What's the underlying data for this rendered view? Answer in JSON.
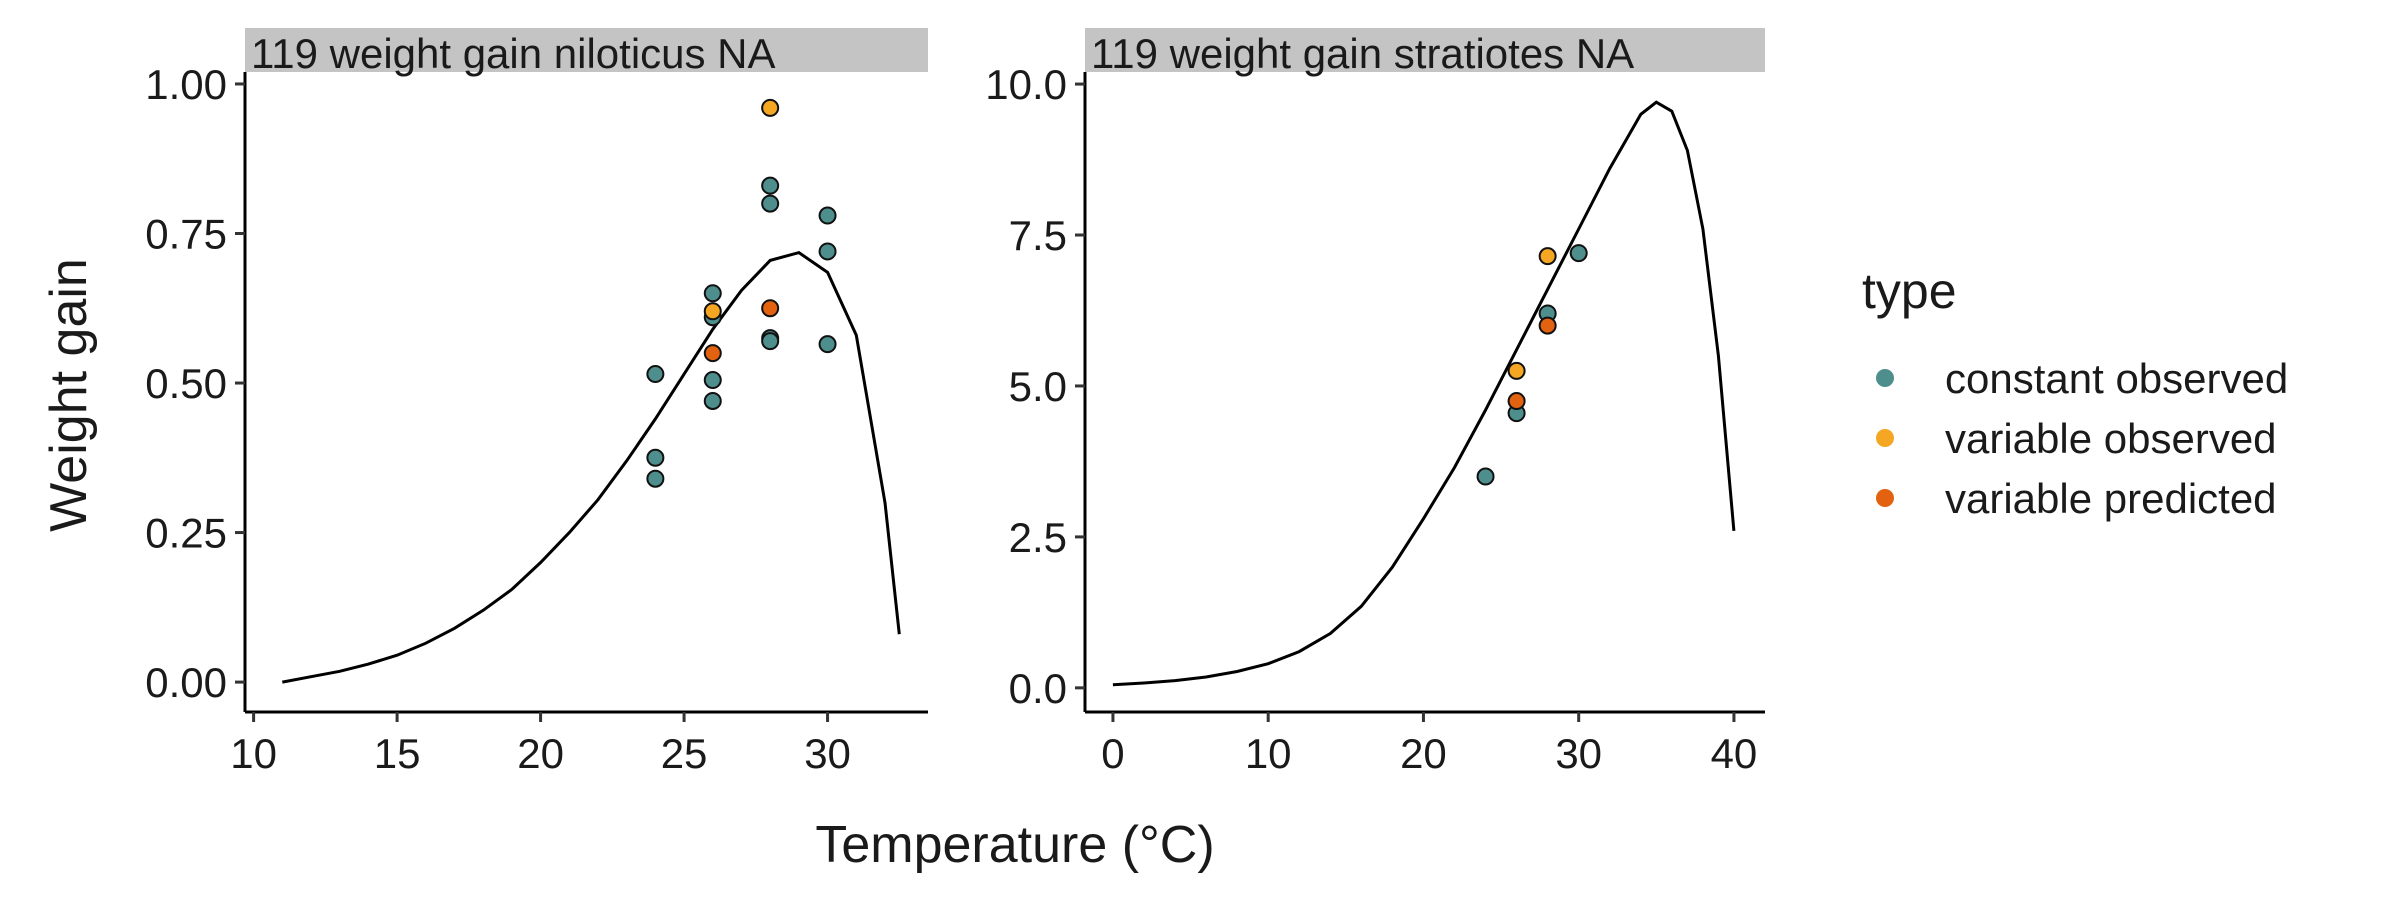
{
  "chart_data": {
    "type": "scatter",
    "xlabel": "Temperature (°C)",
    "ylabel": "Weight gain",
    "legend": {
      "title": "type",
      "position": "right",
      "entries": [
        {
          "label": "constant observed",
          "color": "#4E8F8E"
        },
        {
          "label": "variable observed",
          "color": "#F5A623"
        },
        {
          "label": "variable predicted",
          "color": "#E2620F"
        }
      ]
    },
    "panels": [
      {
        "strip": "119  weight gain  niloticus  NA",
        "xlim": [
          9.7,
          33.5
        ],
        "ylim": [
          -0.05,
          1.02
        ],
        "xticks": [
          10,
          15,
          20,
          25,
          30
        ],
        "yticks": [
          0.0,
          0.25,
          0.5,
          0.75,
          1.0
        ],
        "ytick_labels": [
          "0.00",
          "0.25",
          "0.50",
          "0.75",
          "1.00"
        ],
        "curve": [
          [
            11,
            0.0
          ],
          [
            12,
            0.009
          ],
          [
            13,
            0.018
          ],
          [
            14,
            0.03
          ],
          [
            15,
            0.045
          ],
          [
            16,
            0.065
          ],
          [
            17,
            0.09
          ],
          [
            18,
            0.12
          ],
          [
            19,
            0.155
          ],
          [
            20,
            0.2
          ],
          [
            21,
            0.25
          ],
          [
            22,
            0.305
          ],
          [
            23,
            0.37
          ],
          [
            24,
            0.44
          ],
          [
            25,
            0.515
          ],
          [
            26,
            0.59
          ],
          [
            27,
            0.655
          ],
          [
            28,
            0.705
          ],
          [
            29,
            0.718
          ],
          [
            30,
            0.685
          ],
          [
            31,
            0.58
          ],
          [
            32,
            0.3
          ],
          [
            32.5,
            0.08
          ]
        ],
        "points": [
          {
            "x": 24,
            "y": 0.515,
            "type": "constant observed"
          },
          {
            "x": 24,
            "y": 0.375,
            "type": "constant observed"
          },
          {
            "x": 24,
            "y": 0.34,
            "type": "constant observed"
          },
          {
            "x": 26,
            "y": 0.65,
            "type": "constant observed"
          },
          {
            "x": 26,
            "y": 0.61,
            "type": "constant observed"
          },
          {
            "x": 26,
            "y": 0.505,
            "type": "constant observed"
          },
          {
            "x": 26,
            "y": 0.47,
            "type": "constant observed"
          },
          {
            "x": 28,
            "y": 0.83,
            "type": "constant observed"
          },
          {
            "x": 28,
            "y": 0.8,
            "type": "constant observed"
          },
          {
            "x": 28,
            "y": 0.575,
            "type": "constant observed"
          },
          {
            "x": 28,
            "y": 0.57,
            "type": "constant observed"
          },
          {
            "x": 30,
            "y": 0.78,
            "type": "constant observed"
          },
          {
            "x": 30,
            "y": 0.72,
            "type": "constant observed"
          },
          {
            "x": 30,
            "y": 0.565,
            "type": "constant observed"
          },
          {
            "x": 26,
            "y": 0.62,
            "type": "variable observed"
          },
          {
            "x": 28,
            "y": 0.96,
            "type": "variable observed"
          },
          {
            "x": 26,
            "y": 0.55,
            "type": "variable predicted"
          },
          {
            "x": 28,
            "y": 0.625,
            "type": "variable predicted"
          }
        ]
      },
      {
        "strip": "119  weight gain  stratiotes  NA",
        "xlim": [
          -1.8,
          42
        ],
        "ylim": [
          -0.4,
          10.2
        ],
        "xticks": [
          0,
          10,
          20,
          30,
          40
        ],
        "yticks": [
          0.0,
          2.5,
          5.0,
          7.5,
          10.0
        ],
        "ytick_labels": [
          "0.0",
          "2.5",
          "5.0",
          "7.5",
          "10.0"
        ],
        "curve": [
          [
            0,
            0.05
          ],
          [
            2,
            0.08
          ],
          [
            4,
            0.12
          ],
          [
            6,
            0.18
          ],
          [
            8,
            0.27
          ],
          [
            10,
            0.4
          ],
          [
            12,
            0.6
          ],
          [
            14,
            0.9
          ],
          [
            16,
            1.35
          ],
          [
            18,
            2.0
          ],
          [
            20,
            2.8
          ],
          [
            22,
            3.65
          ],
          [
            24,
            4.6
          ],
          [
            26,
            5.6
          ],
          [
            28,
            6.6
          ],
          [
            30,
            7.6
          ],
          [
            32,
            8.6
          ],
          [
            34,
            9.5
          ],
          [
            35,
            9.7
          ],
          [
            36,
            9.55
          ],
          [
            37,
            8.9
          ],
          [
            38,
            7.6
          ],
          [
            39,
            5.5
          ],
          [
            40,
            2.6
          ]
        ],
        "points": [
          {
            "x": 24,
            "y": 3.5,
            "type": "constant observed"
          },
          {
            "x": 26,
            "y": 4.55,
            "type": "constant observed"
          },
          {
            "x": 28,
            "y": 6.2,
            "type": "constant observed"
          },
          {
            "x": 30,
            "y": 7.2,
            "type": "constant observed"
          },
          {
            "x": 26,
            "y": 5.25,
            "type": "variable observed"
          },
          {
            "x": 28,
            "y": 7.15,
            "type": "variable observed"
          },
          {
            "x": 26,
            "y": 4.75,
            "type": "variable predicted"
          },
          {
            "x": 28,
            "y": 6.0,
            "type": "variable predicted"
          }
        ]
      }
    ]
  }
}
